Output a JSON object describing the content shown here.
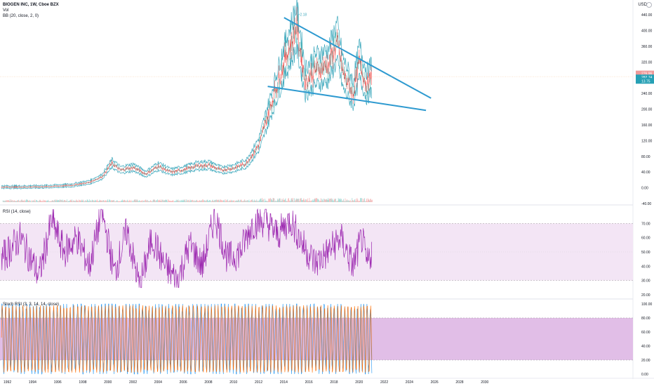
{
  "legend": {
    "symbol": "BIOGEN INC, 1W, Cboe BZX",
    "vol": "Vol",
    "bb": "BB (20, close, 2, 0)",
    "rsi": "RSI (14, close)",
    "stoch": "Stoch RSI (3, 3, 14, 14, close)"
  },
  "currency": "USD",
  "colors": {
    "bb": "#3fa9bd",
    "candle": "#ef5350",
    "trendline": "#2e9ad0",
    "rsi": "#9c27b0",
    "rsi_band": "#f3e5f5",
    "stoch_band": "#e1bee7",
    "stoch_k": "#2196f3",
    "stoch_d": "#ff6d00",
    "price_tag": "#ef9a9a",
    "bb_tag": "#26a0b5"
  },
  "chart_data": [
    {
      "type": "line",
      "title": "BIOGEN INC, 1W, Cboe BZX",
      "x_axis_labels": [
        "1992",
        "1994",
        "1996",
        "1998",
        "2000",
        "2002",
        "2004",
        "2006",
        "2008",
        "2010",
        "2012",
        "2014",
        "2016",
        "2018",
        "2020",
        "2022",
        "2024",
        "2026",
        "2028",
        "2030"
      ],
      "y_ticks": [
        "440.00",
        "400.00",
        "360.00",
        "320.00",
        "280.00",
        "240.00",
        "200.00",
        "160.00",
        "120.00",
        "80.00",
        "40.00",
        "0.00",
        "-40.00"
      ],
      "ylim": [
        -40,
        460
      ],
      "series": [
        {
          "values_by_year": [
            [
              1991.5,
              2
            ],
            [
              1993,
              2
            ],
            [
              1995,
              3
            ],
            [
              1997,
              6
            ],
            [
              1998.5,
              14
            ],
            [
              1999.5,
              28
            ],
            [
              2000.3,
              62
            ],
            [
              2001,
              45
            ],
            [
              2002,
              52
            ],
            [
              2003,
              35
            ],
            [
              2004,
              55
            ],
            [
              2005,
              40
            ],
            [
              2006,
              46
            ],
            [
              2007,
              55
            ],
            [
              2008,
              58
            ],
            [
              2009,
              45
            ],
            [
              2010,
              50
            ],
            [
              2011,
              62
            ],
            [
              2012,
              110
            ],
            [
              2013,
              215
            ],
            [
              2014,
              320
            ],
            [
              2015,
              410
            ],
            [
              2015.7,
              270
            ],
            [
              2016.5,
              300
            ],
            [
              2017.5,
              310
            ],
            [
              2018.2,
              370
            ],
            [
              2018.7,
              290
            ],
            [
              2019.5,
              240
            ],
            [
              2020,
              320
            ],
            [
              2020.6,
              260
            ],
            [
              2021,
              283
            ]
          ]
        }
      ],
      "annotations": {
        "peak_label": "~2.18"
      },
      "price_tags": [
        "276.96",
        "282.74",
        "13.75"
      ],
      "trendlines": [
        {
          "from": [
            2014.0,
            433
          ],
          "to": [
            2025.7,
            228
          ]
        },
        {
          "from": [
            2012.7,
            258
          ],
          "to": [
            2025.3,
            197
          ]
        }
      ]
    },
    {
      "type": "line",
      "title": "RSI (14, close)",
      "y_ticks": [
        "70.00",
        "60.00",
        "50.00",
        "40.00",
        "30.00",
        "20.00"
      ],
      "ylim": [
        18,
        82
      ],
      "band": [
        30,
        70
      ],
      "series": [
        {
          "values_by_year": [
            [
              1991.5,
              45
            ],
            [
              1993,
              60
            ],
            [
              1994.5,
              33
            ],
            [
              1995.5,
              72
            ],
            [
              1996.5,
              50
            ],
            [
              1997.5,
              60
            ],
            [
              1998.5,
              40
            ],
            [
              1999.5,
              78
            ],
            [
              2000.5,
              35
            ],
            [
              2001.5,
              65
            ],
            [
              2002.5,
              25
            ],
            [
              2003.5,
              60
            ],
            [
              2004.5,
              40
            ],
            [
              2005.5,
              30
            ],
            [
              2006.5,
              55
            ],
            [
              2007.5,
              40
            ],
            [
              2008.5,
              76
            ],
            [
              2009.5,
              45
            ],
            [
              2010.5,
              50
            ],
            [
              2011.5,
              70
            ],
            [
              2012.5,
              72
            ],
            [
              2013.5,
              62
            ],
            [
              2014.5,
              73
            ],
            [
              2015.5,
              55
            ],
            [
              2016.5,
              42
            ],
            [
              2017.5,
              50
            ],
            [
              2018.5,
              60
            ],
            [
              2019.5,
              40
            ],
            [
              2020.2,
              60
            ],
            [
              2020.6,
              40
            ],
            [
              2021,
              52
            ]
          ]
        }
      ]
    },
    {
      "type": "line",
      "title": "Stoch RSI (3, 3, 14, 14, close)",
      "y_ticks": [
        "100.00",
        "80.00",
        "60.00",
        "40.00",
        "20.00",
        "0.00"
      ],
      "ylim": [
        -5,
        105
      ],
      "band": [
        20,
        80
      ],
      "series": [
        {
          "name": "",
          "values_by_year": [
            [
              1991.5,
              50
            ],
            [
              2021,
              90
            ]
          ]
        },
        {
          "name": "",
          "values_by_year": [
            [
              1991.5,
              45
            ],
            [
              2021,
              85
            ]
          ]
        }
      ]
    }
  ]
}
